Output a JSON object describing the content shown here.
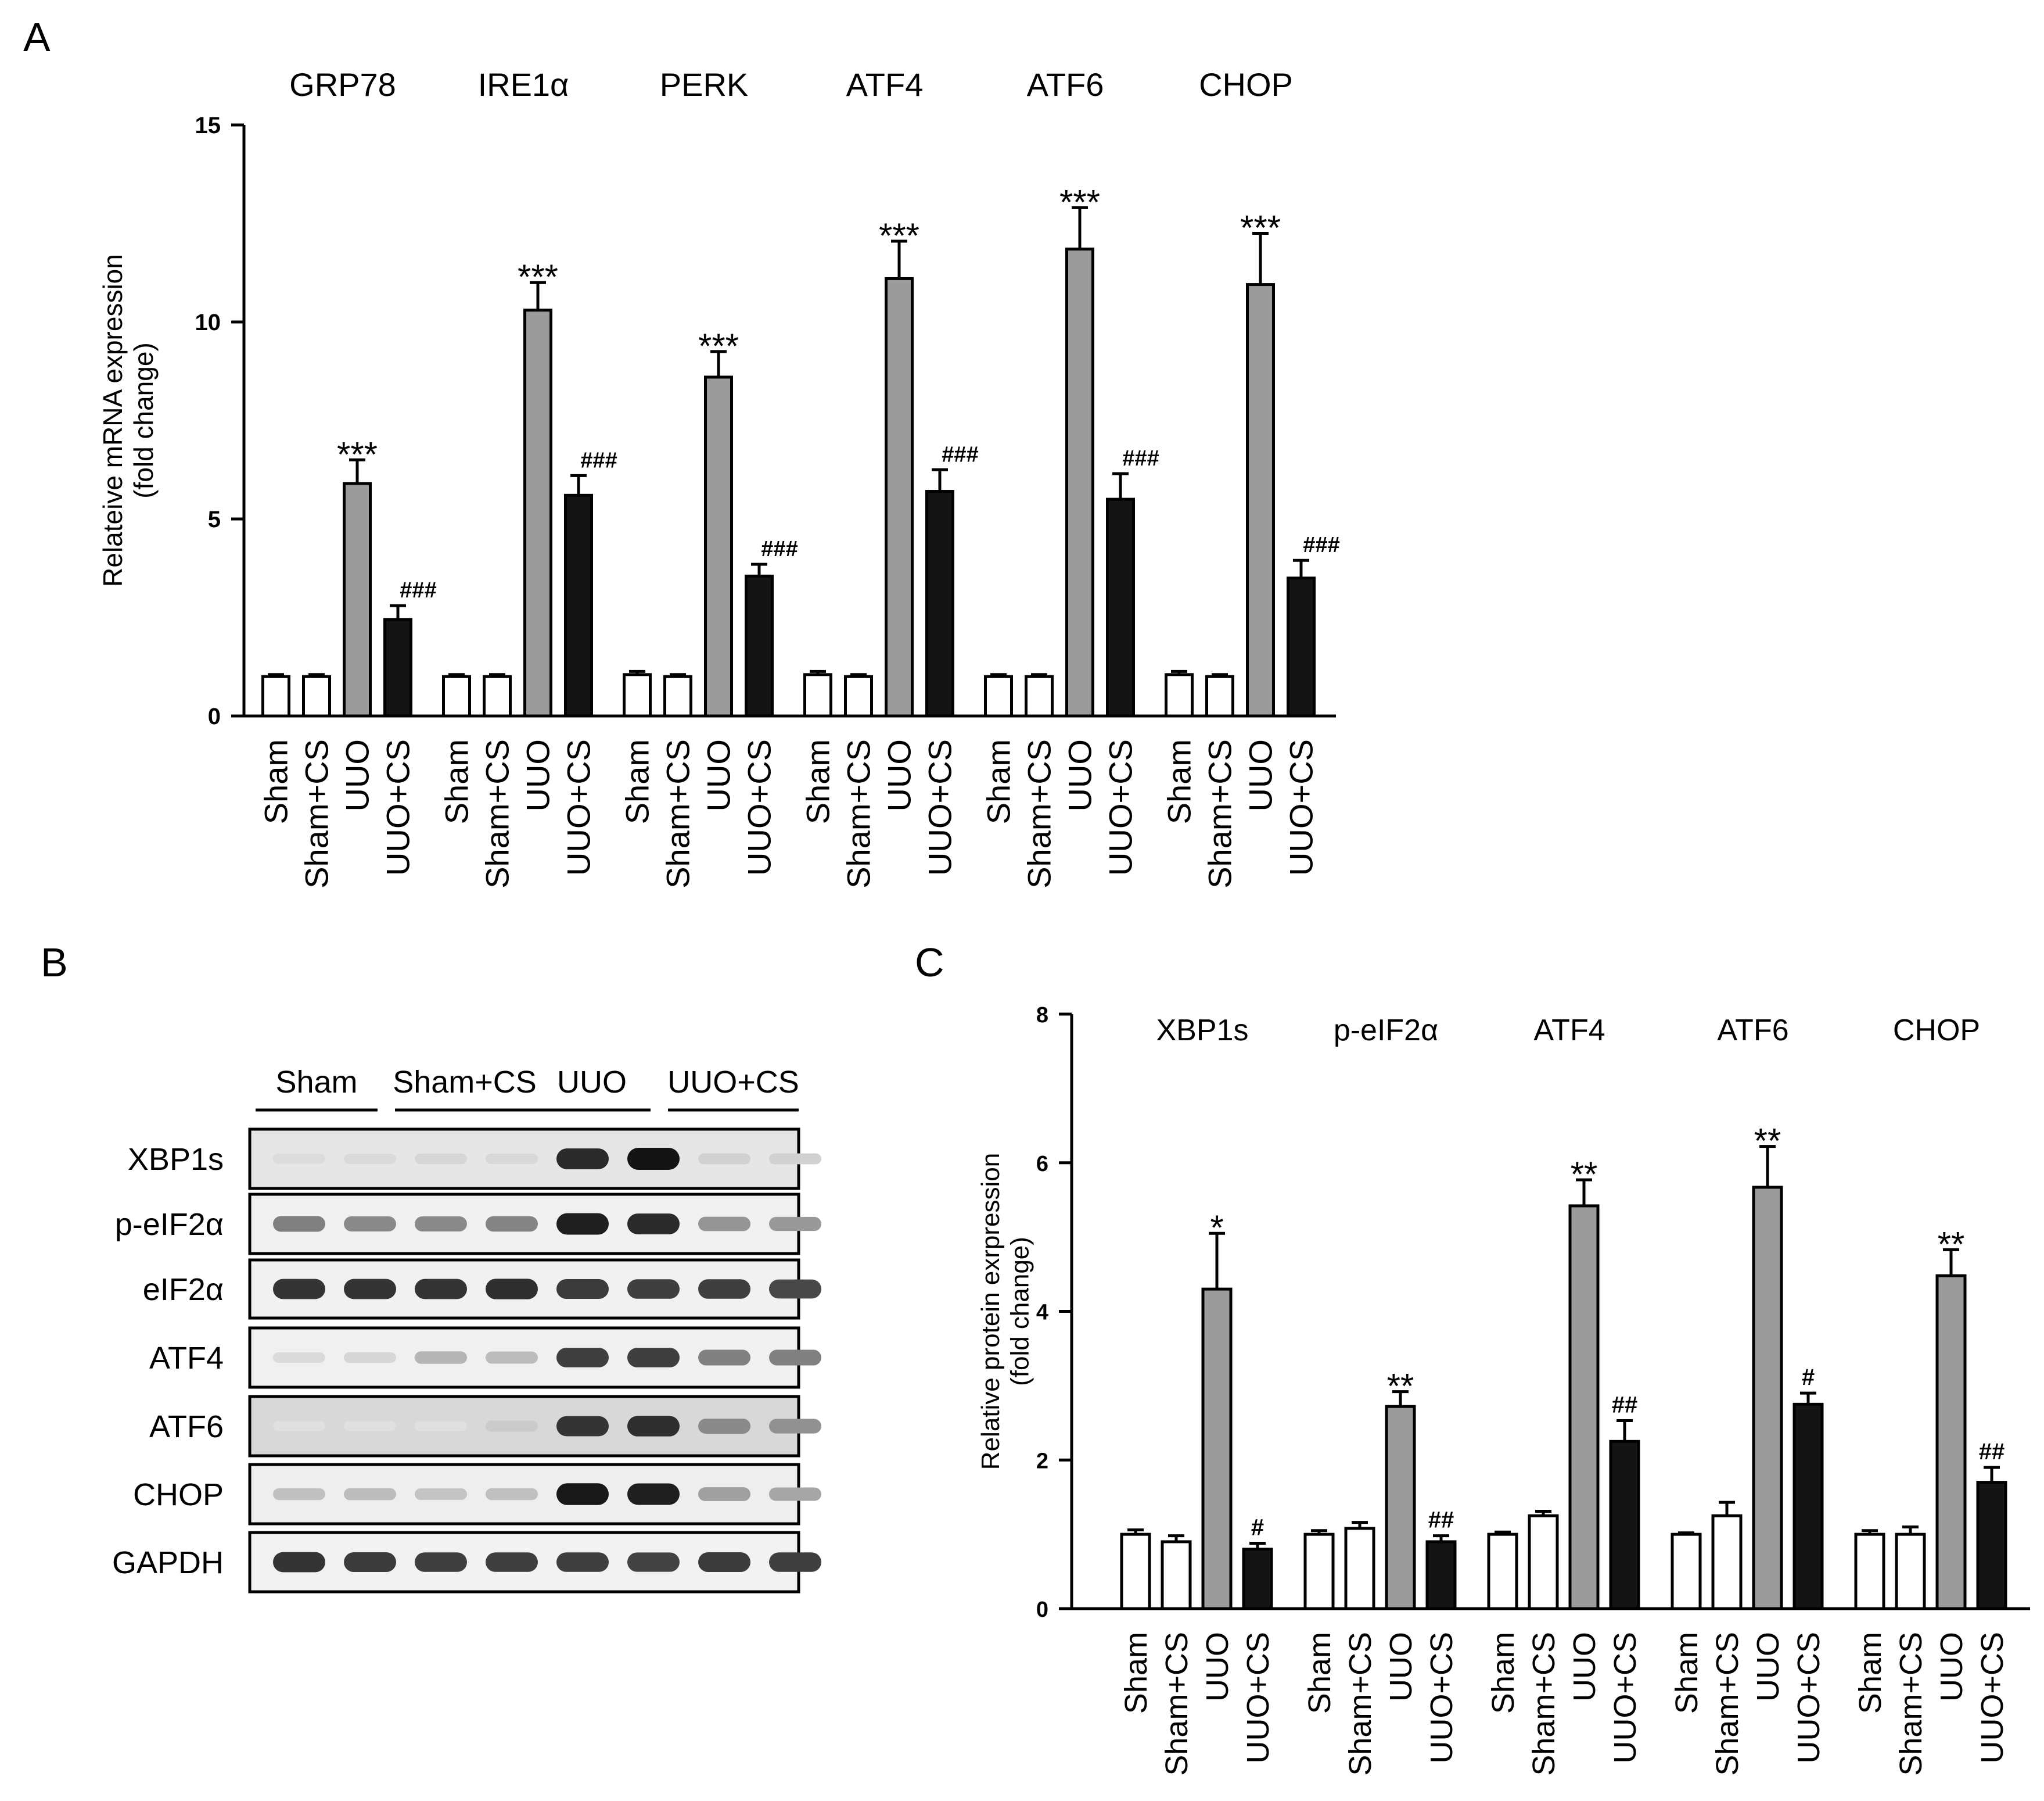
{
  "panel_labels": {
    "a": "A",
    "b": "B",
    "c": "C"
  },
  "colors": {
    "sham": "#ffffff",
    "sham_cs": "#ffffff",
    "uuo": "#9b9b9b",
    "uuo_cs": "#141414",
    "blot_bg": "#ececec",
    "band": "#1a1a1a"
  },
  "chart_data": [
    {
      "id": "A",
      "type": "bar",
      "title": "",
      "ylabel": "Relateive mRNA expression",
      "ylabel2": "(fold change)",
      "xlabel": "",
      "ylim": [
        0,
        15
      ],
      "yticks": [
        0,
        5,
        10,
        15
      ],
      "conditions": [
        "Sham",
        "Sham+CS",
        "UUO",
        "UUO+CS"
      ],
      "groups": [
        {
          "name": "GRP78",
          "values": [
            1.0,
            1.0,
            5.9,
            2.45
          ],
          "errors": [
            0.05,
            0.05,
            0.6,
            0.35
          ],
          "marks": [
            "",
            "",
            "***",
            "###"
          ]
        },
        {
          "name": "IRE1α",
          "values": [
            1.0,
            1.0,
            10.3,
            5.6
          ],
          "errors": [
            0.05,
            0.05,
            0.7,
            0.5
          ],
          "marks": [
            "",
            "",
            "***",
            "###"
          ]
        },
        {
          "name": "PERK",
          "values": [
            1.05,
            1.0,
            8.6,
            3.55
          ],
          "errors": [
            0.08,
            0.05,
            0.65,
            0.3
          ],
          "marks": [
            "",
            "",
            "***",
            "###"
          ]
        },
        {
          "name": "ATF4",
          "values": [
            1.05,
            1.0,
            11.1,
            5.7
          ],
          "errors": [
            0.08,
            0.05,
            0.95,
            0.55
          ],
          "marks": [
            "",
            "",
            "***",
            "###"
          ]
        },
        {
          "name": "ATF6",
          "values": [
            1.0,
            1.0,
            11.85,
            5.5
          ],
          "errors": [
            0.05,
            0.05,
            1.05,
            0.65
          ],
          "marks": [
            "",
            "",
            "***",
            "###"
          ]
        },
        {
          "name": "CHOP",
          "values": [
            1.05,
            1.0,
            10.95,
            3.5
          ],
          "errors": [
            0.08,
            0.05,
            1.3,
            0.45
          ],
          "marks": [
            "",
            "",
            "***",
            "###"
          ]
        }
      ]
    },
    {
      "id": "C",
      "type": "bar",
      "title": "",
      "ylabel": "Relative protein exrpression",
      "ylabel2": "(fold change)",
      "xlabel": "",
      "ylim": [
        0,
        8
      ],
      "yticks": [
        0,
        2,
        4,
        6,
        8
      ],
      "conditions": [
        "Sham",
        "Sham+CS",
        "UUO",
        "UUO+CS"
      ],
      "groups": [
        {
          "name": "XBP1s",
          "values": [
            1.0,
            0.9,
            4.3,
            0.8
          ],
          "errors": [
            0.06,
            0.08,
            0.75,
            0.08
          ],
          "marks": [
            "",
            "",
            "*",
            "#"
          ]
        },
        {
          "name": "p-eIF2α",
          "values": [
            1.0,
            1.08,
            2.72,
            0.9
          ],
          "errors": [
            0.05,
            0.08,
            0.2,
            0.08
          ],
          "marks": [
            "",
            "",
            "**",
            "##"
          ]
        },
        {
          "name": "ATF4",
          "values": [
            1.0,
            1.25,
            5.42,
            2.25
          ],
          "errors": [
            0.03,
            0.06,
            0.35,
            0.28
          ],
          "marks": [
            "",
            "",
            "**",
            "##"
          ]
        },
        {
          "name": "ATF6",
          "values": [
            1.0,
            1.25,
            5.67,
            2.75
          ],
          "errors": [
            0.02,
            0.18,
            0.55,
            0.15
          ],
          "marks": [
            "",
            "",
            "**",
            "#"
          ]
        },
        {
          "name": "CHOP",
          "values": [
            1.0,
            1.0,
            4.48,
            1.7
          ],
          "errors": [
            0.05,
            0.1,
            0.35,
            0.2
          ],
          "marks": [
            "",
            "",
            "**",
            "##"
          ]
        }
      ]
    }
  ],
  "blot": {
    "groups": [
      "Sham",
      "Sham+CS",
      "UUO",
      "UUO+CS"
    ],
    "rows": [
      {
        "label": "XBP1s",
        "intensities": [
          0.07,
          0.08,
          0.1,
          0.09,
          0.9,
          1.0,
          0.12,
          0.12
        ],
        "bg": "#e6e6e6"
      },
      {
        "label": "p-eIF2α",
        "intensities": [
          0.5,
          0.45,
          0.45,
          0.48,
          0.95,
          0.9,
          0.4,
          0.38
        ],
        "bg": "#f1f1f1"
      },
      {
        "label": "eIF2α",
        "intensities": [
          0.85,
          0.85,
          0.85,
          0.88,
          0.82,
          0.8,
          0.8,
          0.76
        ],
        "bg": "#f1f1f1"
      },
      {
        "label": "ATF4",
        "intensities": [
          0.08,
          0.1,
          0.25,
          0.22,
          0.8,
          0.8,
          0.5,
          0.5
        ],
        "bg": "#f0f0f0"
      },
      {
        "label": "ATF6",
        "intensities": [
          0.05,
          0.05,
          0.05,
          0.15,
          0.85,
          0.88,
          0.45,
          0.42
        ],
        "bg": "#d8d8d8"
      },
      {
        "label": "CHOP",
        "intensities": [
          0.2,
          0.22,
          0.18,
          0.2,
          0.98,
          0.95,
          0.35,
          0.32
        ],
        "bg": "#eeeeee"
      },
      {
        "label": "GAPDH",
        "intensities": [
          0.85,
          0.82,
          0.8,
          0.8,
          0.8,
          0.78,
          0.82,
          0.8
        ],
        "bg": "#f2f2f2"
      }
    ]
  }
}
